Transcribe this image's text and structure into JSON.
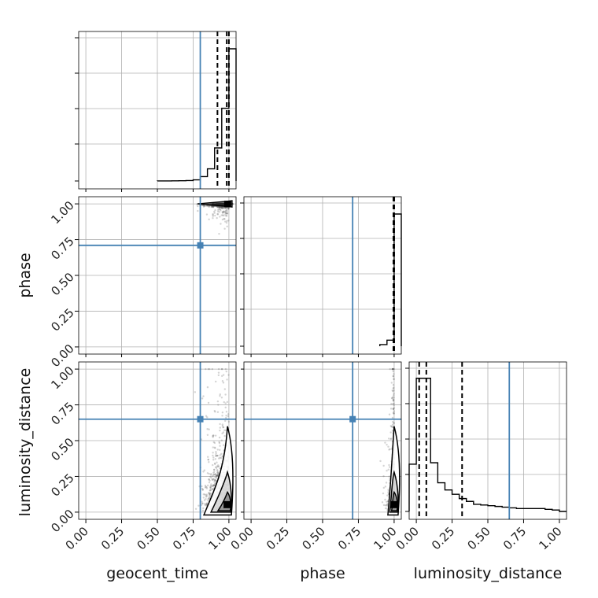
{
  "chart_data": {
    "type": "corner",
    "parameters": [
      "geocent_time",
      "phase",
      "luminosity_distance"
    ],
    "tick_labels": [
      "0.00",
      "0.25",
      "0.50",
      "0.75",
      "1.00"
    ],
    "range": [
      -0.05,
      1.05
    ],
    "grid": true,
    "truths": {
      "geocent_time": 0.8,
      "phase": 0.71,
      "luminosity_distance": 0.65
    },
    "colors": {
      "truth": "#4682b4",
      "hist": "#000000",
      "grid": "#b0b0b0",
      "scatter": "#555555"
    },
    "histograms": [
      {
        "parameter": "geocent_time",
        "bin_edges": [
          0.5,
          0.55,
          0.6,
          0.65,
          0.7,
          0.75,
          0.8,
          0.85,
          0.9,
          0.95,
          1.0,
          1.05
        ],
        "counts": [
          0.2,
          0.4,
          0.6,
          1.0,
          2,
          5,
          20,
          55,
          150,
          330,
          600
        ],
        "ymax": 650,
        "quantiles": [
          0.92,
          0.985,
          1.0
        ]
      },
      {
        "parameter": "phase",
        "bin_edges": [
          0.9,
          0.95,
          1.0,
          1.05
        ],
        "counts": [
          6,
          22,
          480
        ],
        "ymax": 520,
        "quantiles": [
          0.995,
          1.0,
          1.0
        ]
      },
      {
        "parameter": "luminosity_distance",
        "bin_edges": [
          -0.05,
          0.0,
          0.05,
          0.1,
          0.15,
          0.2,
          0.25,
          0.3,
          0.35,
          0.4,
          0.45,
          0.5,
          0.55,
          0.6,
          0.65,
          0.7,
          0.75,
          0.8,
          0.85,
          0.9,
          0.95,
          1.0,
          1.05
        ],
        "counts": [
          0.33,
          0.93,
          0.93,
          0.34,
          0.2,
          0.15,
          0.12,
          0.09,
          0.07,
          0.05,
          0.045,
          0.04,
          0.035,
          0.03,
          0.025,
          0.02,
          0.02,
          0.02,
          0.02,
          0.015,
          0.01,
          0.0
        ],
        "ymax": 1.0,
        "quantiles": [
          0.02,
          0.07,
          0.32
        ]
      }
    ],
    "pairs": [
      {
        "x": "geocent_time",
        "y": "phase",
        "mode": [
          1.0,
          1.0
        ]
      },
      {
        "x": "geocent_time",
        "y": "luminosity_distance",
        "mode": [
          0.99,
          0.05
        ]
      },
      {
        "x": "phase",
        "y": "luminosity_distance",
        "mode": [
          1.0,
          0.05
        ]
      }
    ]
  }
}
